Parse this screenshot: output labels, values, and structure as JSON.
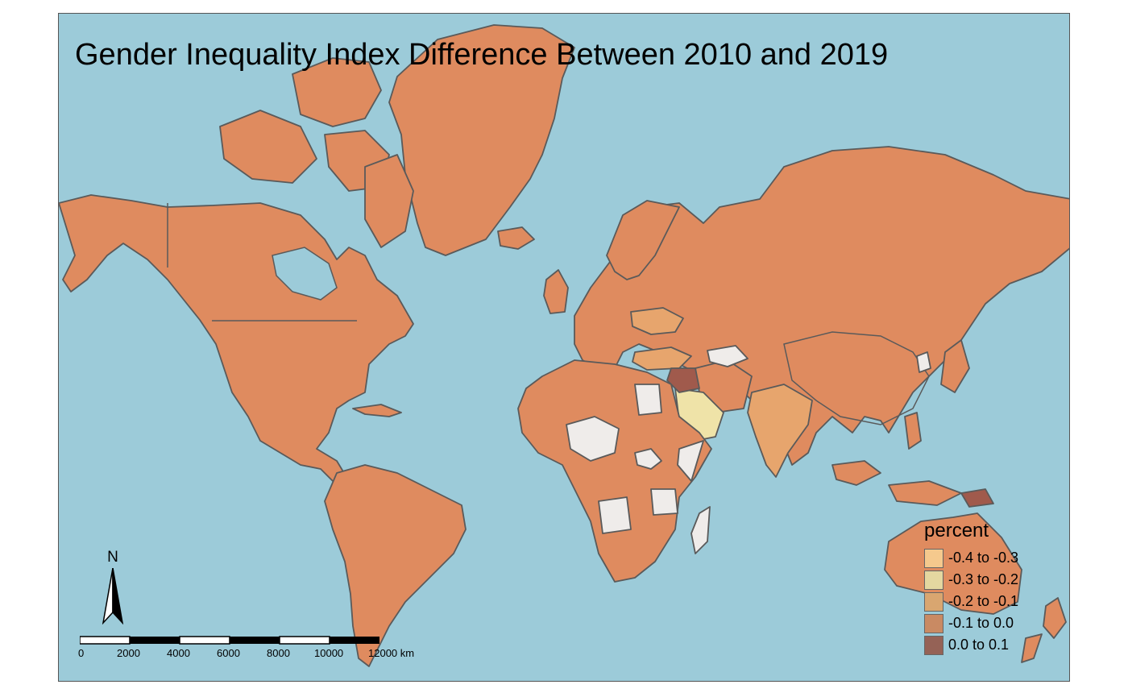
{
  "title": "Gender Inequality Index Difference Between 2010 and 2019",
  "colors": {
    "ocean": "#9ccbd9",
    "no_data": "#efecea",
    "bin_1": "#f5c98d",
    "bin_2": "#efe3a8",
    "bin_3": "#e7a56d",
    "bin_4": "#df8b5f",
    "bin_5": "#a05a4c"
  },
  "legend": {
    "title": "percent",
    "items": [
      {
        "label": "-0.4 to -0.3",
        "color": "#f5c98d"
      },
      {
        "label": "-0.3 to -0.2",
        "color": "#e4d7a0"
      },
      {
        "label": "-0.2 to -0.1",
        "color": "#d9a670"
      },
      {
        "label": "-0.1 to 0.0",
        "color": "#c98a63"
      },
      {
        "label": "0.0 to 0.1",
        "color": "#956256"
      }
    ]
  },
  "north_arrow": {
    "label": "N"
  },
  "scale_bar": {
    "ticks": [
      "0",
      "2000",
      "4000",
      "6000",
      "8000",
      "10000",
      "12000 km"
    ]
  }
}
